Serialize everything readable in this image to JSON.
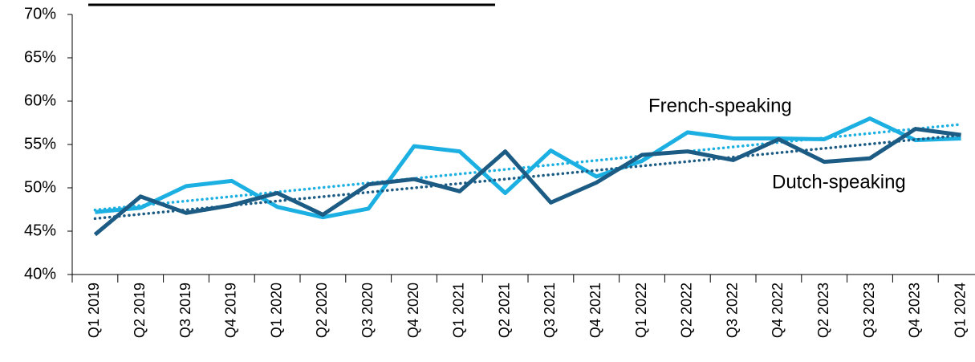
{
  "chart_data": {
    "type": "line",
    "categories": [
      "Q1 2019",
      "Q2 2019",
      "Q3 2019",
      "Q4 2019",
      "Q1 2020",
      "Q2 2020",
      "Q3 2020",
      "Q4 2020",
      "Q1 2021",
      "Q2 2021",
      "Q3 2021",
      "Q4 2021",
      "Q1 2022",
      "Q2 2022",
      "Q3 2022",
      "Q4 2022",
      "Q2 2023",
      "Q3 2023",
      "Q4 2023",
      "Q1 2024"
    ],
    "series": [
      {
        "name": "French-speaking",
        "color": "#1cb0e2",
        "values": [
          47.2,
          47.7,
          50.2,
          50.8,
          47.8,
          46.6,
          47.6,
          54.8,
          54.2,
          49.4,
          54.3,
          51.3,
          53.1,
          56.4,
          55.7,
          55.7,
          55.6,
          58.0,
          55.5,
          55.7
        ]
      },
      {
        "name": "Dutch-speaking",
        "color": "#1b5b84",
        "values": [
          44.6,
          49.0,
          47.1,
          48.0,
          49.4,
          46.9,
          50.4,
          51.0,
          49.6,
          54.2,
          48.3,
          50.6,
          53.8,
          54.2,
          53.2,
          55.6,
          53.0,
          53.4,
          56.8,
          56.1
        ]
      }
    ],
    "ylim": [
      40,
      70
    ],
    "yticks": [
      {
        "value": 40,
        "label": "40%"
      },
      {
        "value": 45,
        "label": "45%"
      },
      {
        "value": 50,
        "label": "50%"
      },
      {
        "value": 55,
        "label": "55%"
      },
      {
        "value": 60,
        "label": "60%"
      },
      {
        "value": 65,
        "label": "65%"
      },
      {
        "value": 70,
        "label": "70%"
      }
    ],
    "trendline": true
  }
}
